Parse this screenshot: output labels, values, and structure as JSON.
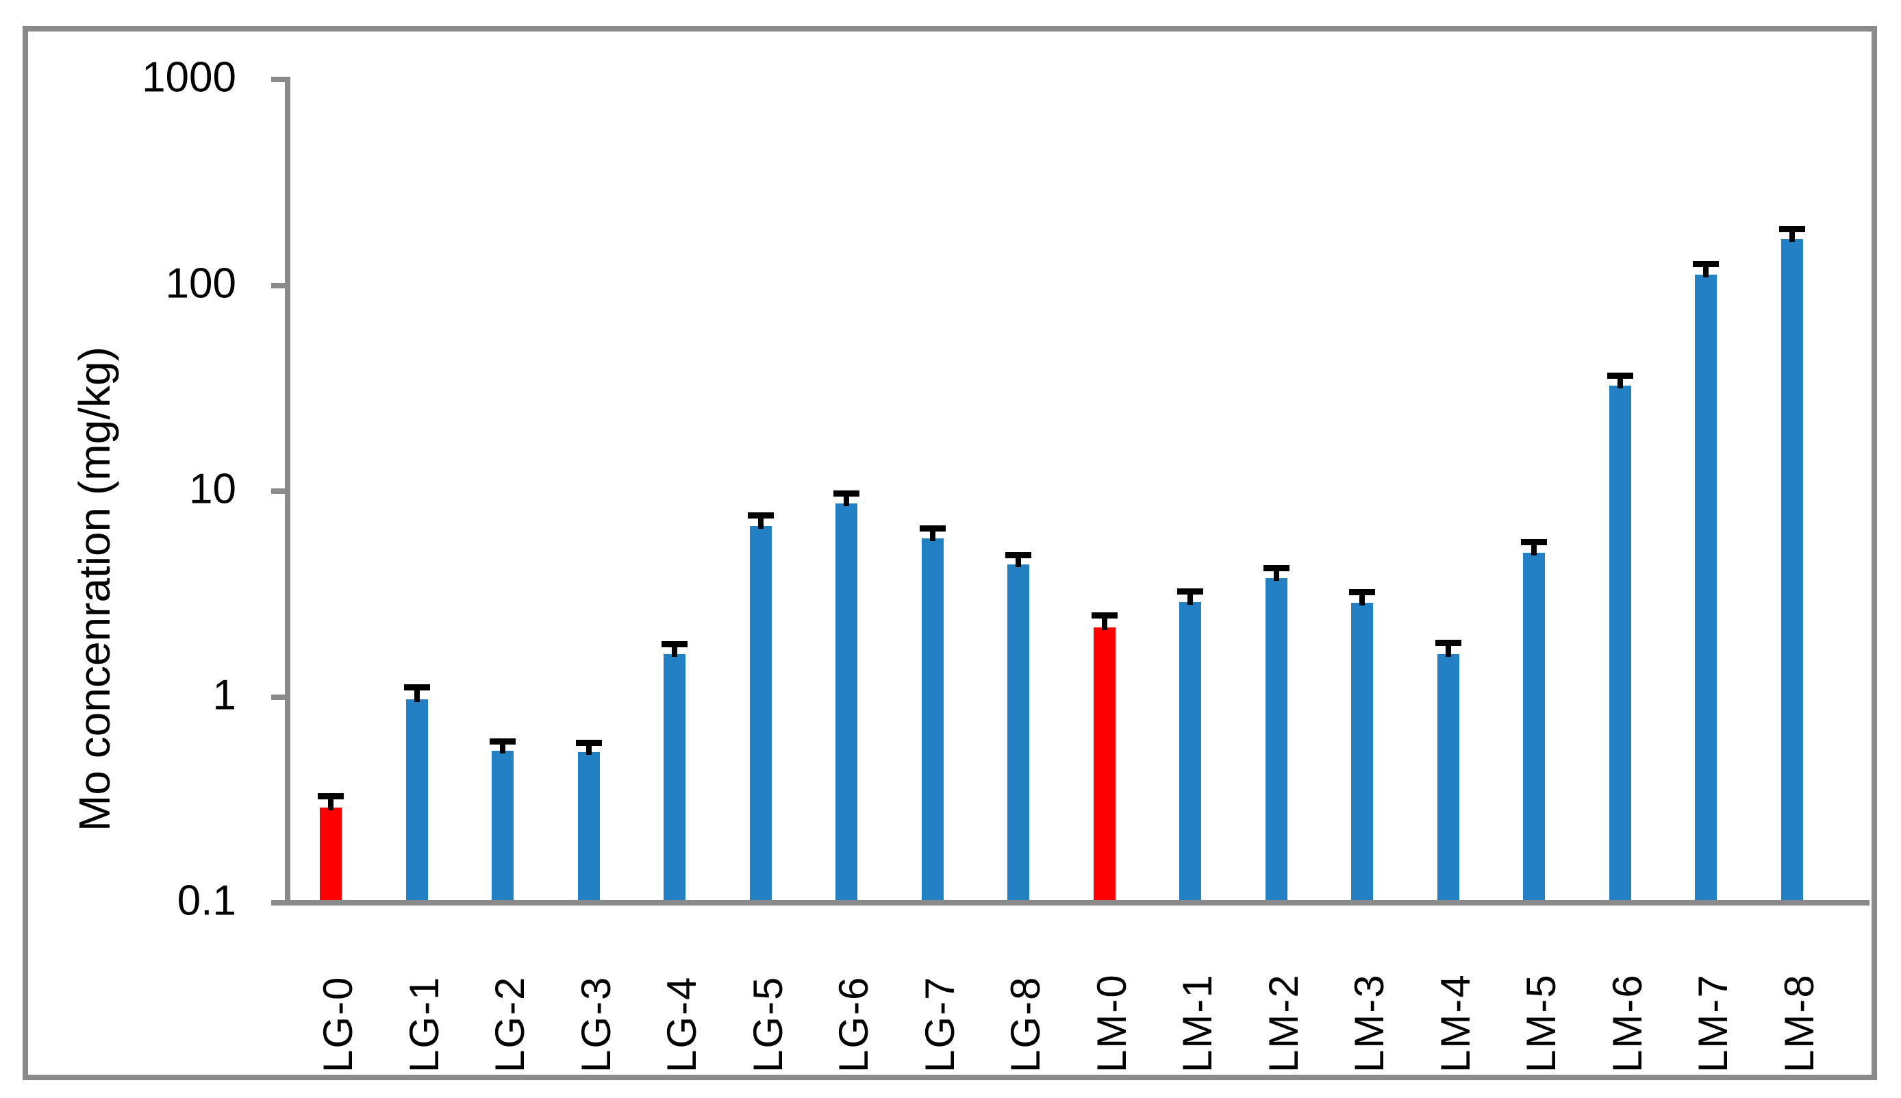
{
  "figure": {
    "background": "#ffffff",
    "border_color": "#8a8a8a",
    "axis_color": "#8a8a8a",
    "text_color": "#000000"
  },
  "chart_data": {
    "type": "bar",
    "title": "",
    "xlabel": "",
    "ylabel": "Mo concenration (mg/kg)",
    "y_scale": "log",
    "ylim": [
      0.1,
      1000
    ],
    "y_tick_labels": [
      "1000",
      "100",
      "10",
      "1",
      "0.1"
    ],
    "y_tick_values": [
      1000,
      100,
      10,
      1,
      0.1
    ],
    "grid": "off",
    "legend": "none",
    "categories": [
      "LG-0",
      "LG-1",
      "LG-2",
      "LG-3",
      "LG-4",
      "LG-5",
      "LG-6",
      "LG-7",
      "LG-8",
      "LM-0",
      "LM-1",
      "LM-2",
      "LM-3",
      "LM-4",
      "LM-5",
      "LM-6",
      "LM-7",
      "LM-8"
    ],
    "values": [
      0.29,
      0.97,
      0.55,
      0.54,
      1.61,
      6.75,
      8.7,
      5.9,
      4.4,
      2.18,
      2.89,
      3.78,
      2.87,
      1.61,
      5.0,
      32.5,
      113,
      168
    ],
    "errors_up": [
      0.04,
      0.14,
      0.06,
      0.06,
      0.2,
      0.85,
      1.0,
      0.7,
      0.5,
      0.3,
      0.37,
      0.45,
      0.37,
      0.22,
      0.65,
      3.8,
      14,
      20
    ],
    "series_color": "#2380c3",
    "highlight_color": "#ff0000",
    "highlight_indices": [
      0,
      9
    ],
    "error_bar_color": "#000000"
  }
}
